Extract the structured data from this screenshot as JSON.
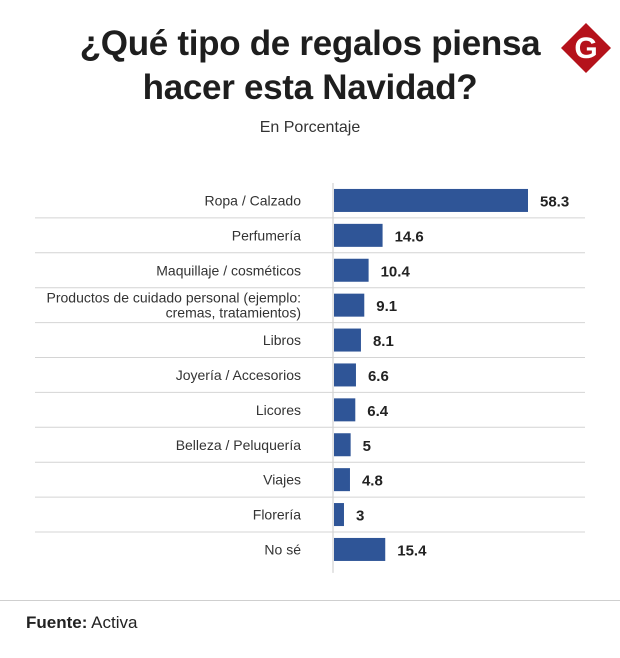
{
  "brand": {
    "logo_letter": "G",
    "logo_color": "#b5121b"
  },
  "chart_data": {
    "type": "bar",
    "orientation": "horizontal",
    "title_line1": "¿Qué tipo de regalos piensa",
    "title_line2": "hacer esta Navidad?",
    "subtitle": "En Porcentaje",
    "categories": [
      [
        "Ropa / Calzado"
      ],
      [
        "Perfumería"
      ],
      [
        "Maquillaje / cosméticos"
      ],
      [
        "Productos de cuidado personal (ejemplo:",
        "cremas, tratamientos)"
      ],
      [
        "Libros"
      ],
      [
        "Joyería / Accesorios"
      ],
      [
        "Licores"
      ],
      [
        "Belleza / Peluquería"
      ],
      [
        "Viajes"
      ],
      [
        "Florería"
      ],
      [
        "No sé"
      ]
    ],
    "values": [
      58.3,
      14.6,
      10.4,
      9.1,
      8.1,
      6.6,
      6.4,
      5,
      4.8,
      3,
      15.4
    ],
    "value_labels": [
      "58.3",
      "14.6",
      "10.4",
      "9.1",
      "8.1",
      "6.6",
      "6.4",
      "5",
      "4.8",
      "3",
      "15.4"
    ],
    "xlim": [
      0,
      60
    ],
    "bar_color": "#2f5597",
    "grid": false
  },
  "footer": {
    "source_label": "Fuente:",
    "source_value": " Activa"
  }
}
